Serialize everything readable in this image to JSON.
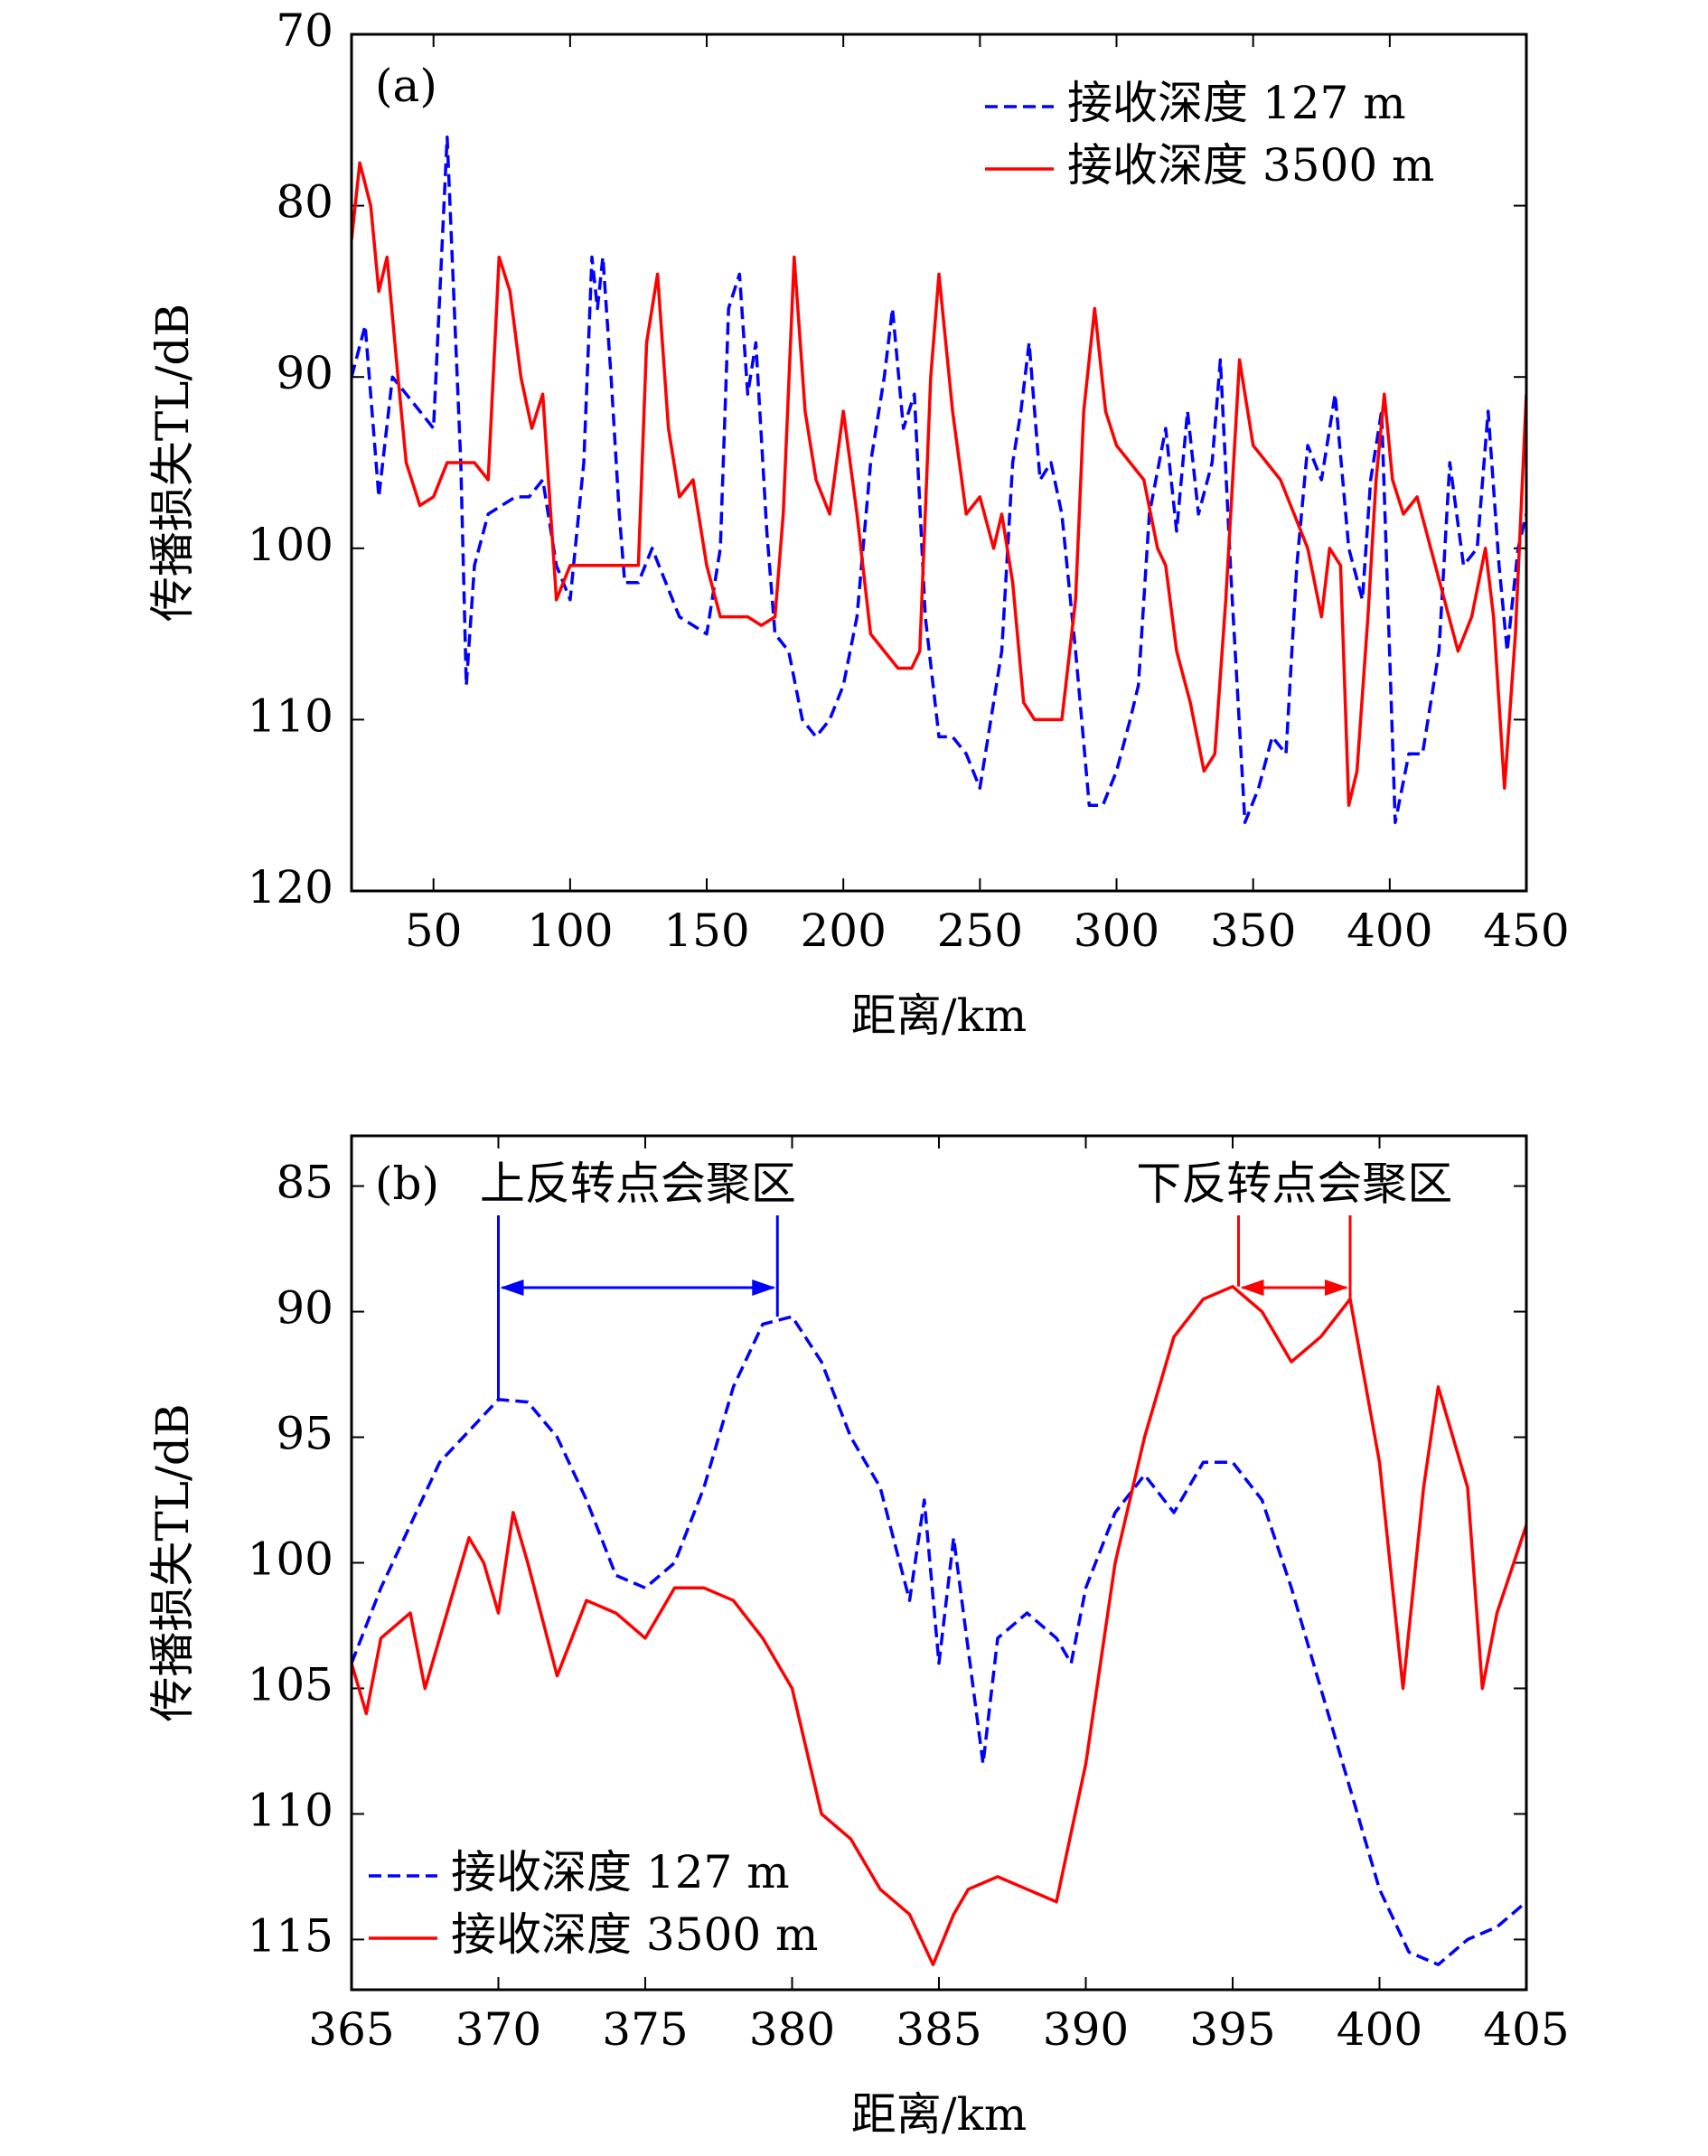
{
  "chart_data": [
    {
      "type": "line",
      "panel": "(a)",
      "xlabel": "距离/km",
      "ylabel": "传播损失TL/dB",
      "xlim": [
        20,
        450
      ],
      "xticks": [
        50,
        100,
        150,
        200,
        250,
        300,
        350,
        400,
        450
      ],
      "ylim": [
        70,
        120
      ],
      "yticks": [
        70,
        80,
        90,
        100,
        110,
        120
      ],
      "y_inverted": true,
      "legend": "upper right",
      "series": [
        {
          "name": "接收深度 127 m",
          "color": "#0000ff",
          "dashed": true,
          "x": [
            20,
            25,
            30,
            35,
            40,
            45,
            50,
            55,
            60,
            62,
            65,
            70,
            75,
            80,
            85,
            90,
            95,
            100,
            105,
            108,
            110,
            112,
            115,
            118,
            120,
            125,
            130,
            135,
            140,
            145,
            150,
            155,
            158,
            162,
            165,
            168,
            172,
            175,
            180,
            185,
            190,
            195,
            200,
            205,
            210,
            215,
            218,
            222,
            226,
            230,
            235,
            240,
            245,
            250,
            255,
            258,
            262,
            265,
            268,
            272,
            276,
            280,
            285,
            290,
            295,
            300,
            305,
            308,
            312,
            318,
            322,
            326,
            330,
            335,
            338,
            342,
            347,
            352,
            357,
            362,
            366,
            370,
            375,
            380,
            385,
            390,
            393,
            397,
            402,
            407,
            412,
            418,
            422,
            427,
            432,
            436,
            440,
            443,
            447,
            450
          ],
          "values": [
            90,
            87,
            97,
            90,
            91,
            92,
            93,
            76,
            95,
            108,
            101,
            98,
            97.5,
            97,
            97,
            96,
            101,
            103,
            95,
            83,
            86,
            83,
            90,
            98,
            102,
            102,
            100,
            102,
            104,
            104.5,
            105,
            100,
            86,
            84,
            91,
            88,
            99,
            105,
            106,
            110,
            111,
            110,
            108,
            104,
            95,
            90,
            86,
            93,
            91,
            104,
            111,
            111,
            112,
            114,
            109,
            106,
            95,
            92,
            88,
            96,
            95,
            98,
            106,
            115,
            115,
            113,
            110,
            108,
            98,
            93,
            99,
            92,
            98,
            95,
            89,
            102,
            116,
            114,
            111,
            112,
            101,
            94,
            96,
            91,
            100,
            103,
            96,
            92,
            116,
            112,
            112,
            106,
            95,
            101,
            100,
            92,
            101,
            106,
            100,
            98
          ]
        },
        {
          "name": "接收深度 3500 m",
          "color": "#ff0000",
          "dashed": false,
          "x": [
            20,
            23,
            27,
            30,
            33,
            37,
            40,
            45,
            50,
            55,
            60,
            65,
            70,
            74,
            78,
            82,
            86,
            90,
            95,
            100,
            105,
            110,
            115,
            120,
            125,
            128,
            132,
            136,
            140,
            145,
            150,
            155,
            160,
            165,
            170,
            175,
            178,
            182,
            186,
            190,
            195,
            200,
            205,
            210,
            215,
            220,
            225,
            228,
            232,
            235,
            240,
            245,
            250,
            255,
            258,
            262,
            266,
            270,
            275,
            280,
            285,
            288,
            292,
            296,
            300,
            305,
            310,
            315,
            318,
            322,
            327,
            332,
            336,
            340,
            345,
            350,
            355,
            360,
            365,
            370,
            375,
            378,
            382,
            385,
            388,
            392,
            395,
            398,
            401,
            405,
            410,
            415,
            420,
            425,
            430,
            435,
            438,
            442,
            446,
            450
          ],
          "values": [
            82,
            77.5,
            80,
            85,
            83,
            90,
            95,
            97.5,
            97,
            95,
            95,
            95,
            96,
            83,
            85,
            90,
            93,
            91,
            103,
            101,
            101,
            101,
            101,
            101,
            101,
            88,
            84,
            93,
            97,
            96,
            101,
            104,
            104,
            104,
            104.5,
            104,
            98,
            83,
            92,
            96,
            98,
            92,
            98,
            105,
            106,
            107,
            107,
            106,
            90,
            84,
            92,
            98,
            97,
            100,
            98,
            102,
            109,
            110,
            110,
            110,
            103,
            92,
            86,
            92,
            94,
            95,
            96,
            100,
            101,
            106,
            109,
            113,
            112,
            103,
            89,
            94,
            95,
            96,
            98,
            100,
            104,
            100,
            101,
            115,
            113,
            104,
            96,
            91,
            96,
            98,
            97,
            100,
            103,
            106,
            104,
            100,
            104,
            114,
            105,
            91
          ]
        }
      ]
    },
    {
      "type": "line",
      "panel": "(b)",
      "xlabel": "距离/km",
      "ylabel": "传播损失TL/dB",
      "xlim": [
        365,
        405
      ],
      "xticks": [
        365,
        370,
        375,
        380,
        385,
        390,
        395,
        400,
        405
      ],
      "ylim": [
        83,
        117
      ],
      "yticks": [
        85,
        90,
        95,
        100,
        105,
        110,
        115
      ],
      "y_inverted": true,
      "legend": "lower left",
      "annotations": [
        {
          "text": "上反转点会聚区",
          "color": "#0000ff",
          "x": [
            370,
            379.5
          ],
          "y": [
            93.5,
            90.2
          ]
        },
        {
          "text": "下反转点会聚区",
          "color": "#ff0000",
          "x": [
            395.2,
            399
          ],
          "y": [
            89,
            89.5
          ]
        }
      ],
      "series": [
        {
          "name": "接收深度 127 m",
          "color": "#0000ff",
          "dashed": true,
          "x": [
            365,
            366,
            368,
            370,
            371,
            372,
            373,
            374,
            375,
            376,
            377,
            378,
            379,
            380,
            381,
            382,
            383,
            384,
            384.5,
            385,
            385.5,
            386.5,
            387,
            388,
            389,
            389.5,
            390,
            391,
            392,
            393,
            394,
            395,
            396,
            397,
            398,
            399,
            400,
            401,
            402,
            403,
            404,
            405
          ],
          "values": [
            104,
            101,
            96,
            93.5,
            93.6,
            95,
            97.5,
            100.5,
            101,
            100,
            97,
            93,
            90.5,
            90.2,
            92,
            95,
            97,
            101.5,
            97.5,
            104,
            99,
            108,
            103,
            102,
            103,
            104,
            101,
            98,
            96.5,
            98,
            96,
            96,
            97.5,
            101,
            105,
            109,
            113,
            115.5,
            116,
            115,
            114.5,
            113.5
          ]
        },
        {
          "name": "接收深度 3500 m",
          "color": "#ff0000",
          "dashed": false,
          "x": [
            365,
            365.5,
            366,
            367,
            367.5,
            368,
            369,
            369.5,
            370,
            370.5,
            371,
            372,
            373,
            374,
            375,
            376,
            377,
            378,
            379,
            380,
            381,
            382,
            383,
            384,
            384.8,
            385.5,
            386,
            387,
            388,
            389,
            390,
            391,
            392,
            393,
            394,
            395,
            396,
            397,
            398,
            399,
            400,
            400.8,
            401.5,
            402,
            403,
            403.5,
            404,
            405
          ],
          "values": [
            104,
            106,
            103,
            102,
            105,
            103,
            99,
            100,
            102,
            98,
            100,
            104.5,
            101.5,
            102,
            103,
            101,
            101,
            101.5,
            103,
            105,
            110,
            111,
            113,
            114,
            116,
            114,
            113,
            112.5,
            113,
            113.5,
            108,
            100,
            95,
            91,
            89.5,
            89,
            90,
            92,
            91,
            89.5,
            96,
            105,
            97,
            93,
            97,
            105,
            102,
            98.5
          ]
        }
      ]
    }
  ]
}
